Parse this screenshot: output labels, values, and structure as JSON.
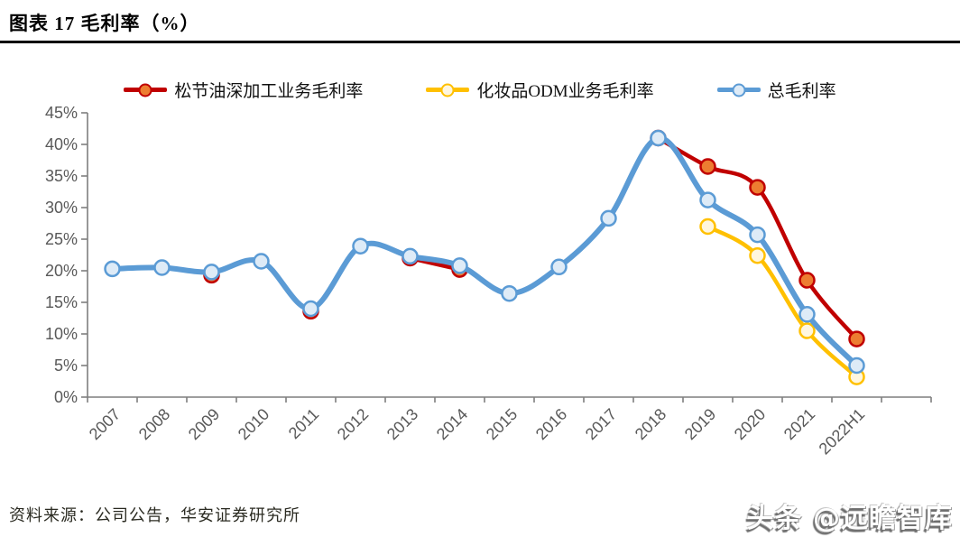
{
  "header": {
    "title": "图表 17  毛利率（%）"
  },
  "legend": [
    {
      "label": "松节油深加工业务毛利率",
      "color": "#C00000",
      "marker_fill": "#ED7D31"
    },
    {
      "label": "化妆品ODM业务毛利率",
      "color": "#FFC000",
      "marker_fill": "#FFF6DE"
    },
    {
      "label": "总毛利率",
      "color": "#5B9BD5",
      "marker_fill": "#DEEBF7"
    }
  ],
  "footer": {
    "source": "资料来源：公司公告，华安证券研究所",
    "watermark": "头条 @远瞻智库"
  },
  "chart_data": {
    "type": "line",
    "title": "毛利率（%）",
    "categories": [
      "2007",
      "2008",
      "2009",
      "2010",
      "2011",
      "2012",
      "2013",
      "2014",
      "2015",
      "2016",
      "2017",
      "2018",
      "2019",
      "2020",
      "2021",
      "2022H1"
    ],
    "series": [
      {
        "name": "松节油深加工业务毛利率",
        "color": "#C00000",
        "marker_fill": "#ED7D31",
        "values": [
          null,
          null,
          19.3,
          null,
          13.6,
          null,
          22.0,
          20.2,
          null,
          null,
          null,
          41.0,
          36.5,
          33.2,
          18.5,
          9.2
        ]
      },
      {
        "name": "化妆品ODM业务毛利率",
        "color": "#FFC000",
        "marker_fill": "#FFF6DE",
        "values": [
          null,
          null,
          null,
          null,
          null,
          null,
          null,
          null,
          null,
          null,
          null,
          null,
          27.0,
          22.4,
          10.5,
          3.2
        ]
      },
      {
        "name": "总毛利率",
        "color": "#5B9BD5",
        "marker_fill": "#DEEBF7",
        "values": [
          20.3,
          20.5,
          19.8,
          21.5,
          14.0,
          23.9,
          22.3,
          20.8,
          16.4,
          20.6,
          28.3,
          41.0,
          31.2,
          25.7,
          13.1,
          5.0
        ]
      }
    ],
    "ylim": [
      0,
      45
    ],
    "ytick_step": 5,
    "ytick_labels": [
      "0%",
      "5%",
      "10%",
      "15%",
      "20%",
      "25%",
      "30%",
      "35%",
      "40%",
      "45%"
    ],
    "grid": false,
    "legend_position": "top",
    "axis_color": "#7F7F7F",
    "tick_label_color": "#595959"
  }
}
